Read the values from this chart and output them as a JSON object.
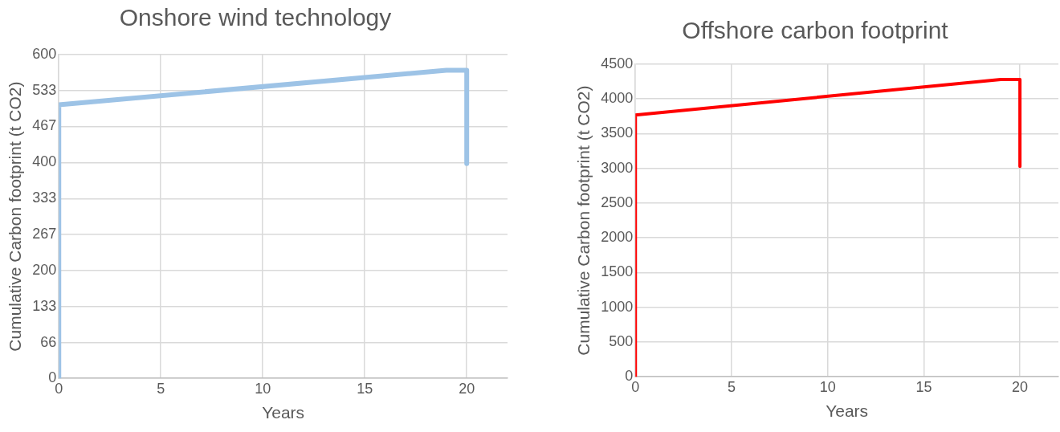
{
  "chart_data": [
    {
      "type": "line",
      "title": "Onshore wind technology",
      "xlabel": "Years",
      "ylabel": "Cumulative Carbon footprint (t CO2)",
      "series": [
        {
          "color": "#9dc3e6",
          "x": [
            0,
            0,
            19,
            20,
            20
          ],
          "values": [
            0,
            507,
            571,
            571,
            398
          ]
        }
      ],
      "xlim": [
        0,
        22
      ],
      "xticks": [
        0,
        5,
        10,
        15,
        20
      ],
      "ylim": [
        0,
        600
      ],
      "yticks": [
        0,
        66,
        133,
        200,
        267,
        333,
        400,
        467,
        533,
        600
      ],
      "grid": true,
      "legend": false,
      "marker": "none",
      "line_style": "solid"
    },
    {
      "type": "line",
      "title": "Offshore carbon footprint",
      "xlabel": "Years",
      "ylabel": "Cumulative Carbon footprint (t CO2)",
      "series": [
        {
          "color": "#ff0000",
          "x": [
            0,
            0,
            19,
            20,
            20
          ],
          "values": [
            0,
            3770,
            4280,
            4280,
            3030
          ]
        }
      ],
      "xlim": [
        0,
        22
      ],
      "xticks": [
        0,
        5,
        10,
        15,
        20
      ],
      "ylim": [
        0,
        4500
      ],
      "yticks": [
        0,
        500,
        1000,
        1500,
        2000,
        2500,
        3000,
        3500,
        4000,
        4500
      ],
      "grid": true,
      "legend": false,
      "marker": "none",
      "line_style": "solid"
    }
  ]
}
